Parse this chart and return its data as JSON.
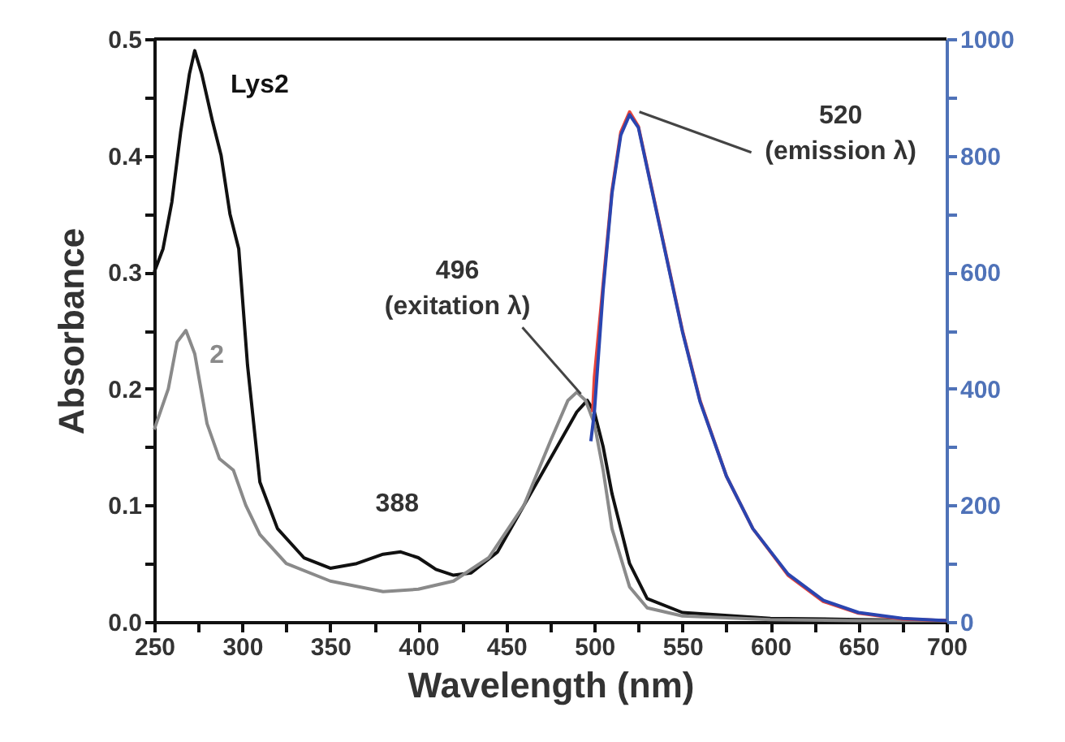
{
  "chart_data": {
    "type": "line",
    "xlabel": "Wavelength (nm)",
    "ylabel": "Absorbance",
    "xlim": [
      250,
      700
    ],
    "xticks": [
      250,
      {
        "value": 275,
        "label": null
      },
      300,
      {
        "value": 325,
        "label": null
      },
      350,
      {
        "value": 375,
        "label": null
      },
      400,
      {
        "value": 425,
        "label": null
      },
      450,
      {
        "value": 475,
        "label": null
      },
      500,
      {
        "value": 525,
        "label": null
      },
      550,
      {
        "value": 575,
        "label": null
      },
      600,
      {
        "value": 625,
        "label": null
      },
      650,
      {
        "value": 675,
        "label": null
      },
      700
    ],
    "ylim": [
      0,
      0.5
    ],
    "yticks": [
      {
        "value": 0,
        "label": "0.0"
      },
      {
        "value": 0.05,
        "label": null
      },
      {
        "value": 0.1,
        "label": "0.1"
      },
      {
        "value": 0.15,
        "label": null
      },
      {
        "value": 0.2,
        "label": "0.2"
      },
      {
        "value": 0.25,
        "label": null
      },
      {
        "value": 0.3,
        "label": "0.3"
      },
      {
        "value": 0.35,
        "label": null
      },
      {
        "value": 0.4,
        "label": "0.4"
      },
      {
        "value": 0.45,
        "label": null
      },
      {
        "value": 0.5,
        "label": "0.5"
      }
    ],
    "y2lim": [
      0,
      1000
    ],
    "y2ticks": [
      0,
      {
        "value": 100,
        "label": null
      },
      200,
      {
        "value": 300,
        "label": null
      },
      400,
      {
        "value": 500,
        "label": null
      },
      600,
      {
        "value": 700,
        "label": null
      },
      800,
      {
        "value": 900,
        "label": null
      },
      1000
    ],
    "grid": false,
    "marker": "none",
    "line_style": "solid",
    "series": [
      {
        "name": "Lys2",
        "color": "#111111",
        "x": [
          250,
          255,
          260,
          265,
          270,
          273,
          277,
          283,
          288,
          293,
          298,
          303,
          310,
          320,
          335,
          350,
          365,
          380,
          390,
          400,
          410,
          420,
          430,
          445,
          460,
          475,
          490,
          496,
          500,
          505,
          510,
          520,
          530,
          550,
          600,
          650,
          700
        ],
        "values": [
          0.3,
          0.32,
          0.36,
          0.42,
          0.47,
          0.49,
          0.47,
          0.43,
          0.4,
          0.35,
          0.32,
          0.22,
          0.12,
          0.08,
          0.055,
          0.046,
          0.05,
          0.058,
          0.06,
          0.055,
          0.045,
          0.04,
          0.042,
          0.06,
          0.1,
          0.14,
          0.18,
          0.19,
          0.18,
          0.15,
          0.11,
          0.05,
          0.02,
          0.008,
          0.003,
          0.002,
          0.001
        ]
      },
      {
        "name": "2",
        "color": "#8a8a8a",
        "x": [
          250,
          258,
          263,
          268,
          273,
          280,
          287,
          295,
          302,
          310,
          325,
          350,
          380,
          400,
          420,
          440,
          460,
          475,
          485,
          490,
          495,
          500,
          505,
          510,
          520,
          530,
          550,
          600,
          650,
          700
        ],
        "values": [
          0.165,
          0.2,
          0.24,
          0.25,
          0.23,
          0.17,
          0.14,
          0.13,
          0.1,
          0.075,
          0.05,
          0.035,
          0.026,
          0.028,
          0.035,
          0.055,
          0.1,
          0.155,
          0.19,
          0.197,
          0.19,
          0.17,
          0.13,
          0.08,
          0.03,
          0.012,
          0.005,
          0.002,
          0.001,
          0.001
        ]
      },
      {
        "color": "#e8443a",
        "axis": "y2",
        "x": [
          499,
          500,
          505,
          510,
          515,
          520,
          525,
          530,
          540,
          550,
          560,
          575,
          590,
          610,
          630,
          650,
          675,
          700
        ],
        "values": [
          360,
          420,
          580,
          740,
          840,
          875,
          850,
          780,
          640,
          500,
          380,
          250,
          160,
          80,
          35,
          15,
          5,
          2
        ]
      },
      {
        "color": "#2a45b0",
        "axis": "y2",
        "x": [
          498,
          500,
          505,
          510,
          515,
          520,
          525,
          530,
          540,
          550,
          560,
          575,
          590,
          610,
          630,
          650,
          675,
          700
        ],
        "values": [
          310,
          360,
          570,
          735,
          835,
          870,
          848,
          778,
          638,
          498,
          378,
          250,
          160,
          82,
          37,
          16,
          6,
          2
        ]
      }
    ],
    "annotations": [
      {
        "text": "388",
        "x": 388,
        "y": 0.06
      },
      {
        "text": "496\n(exitation λ)",
        "x": 496,
        "y": 0.19
      },
      {
        "text": "520\n(emission λ)",
        "x": 520,
        "y": 0.4375
      }
    ]
  }
}
